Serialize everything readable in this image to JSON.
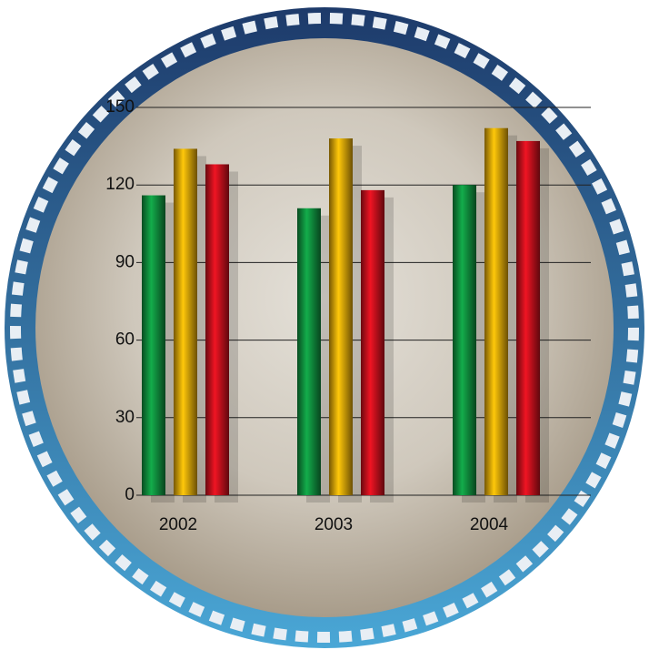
{
  "chart_data": {
    "type": "bar",
    "categories": [
      "2002",
      "2003",
      "2004"
    ],
    "series": [
      {
        "color": "#0f8a3c",
        "values": [
          116,
          111,
          120
        ]
      },
      {
        "color": "#d9a008",
        "values": [
          134,
          138,
          142
        ]
      },
      {
        "color": "#c0101c",
        "values": [
          128,
          118,
          137
        ]
      }
    ],
    "ylim": [
      0,
      150
    ],
    "yticks": [
      0,
      30,
      60,
      90,
      120,
      150
    ],
    "grid": true
  }
}
